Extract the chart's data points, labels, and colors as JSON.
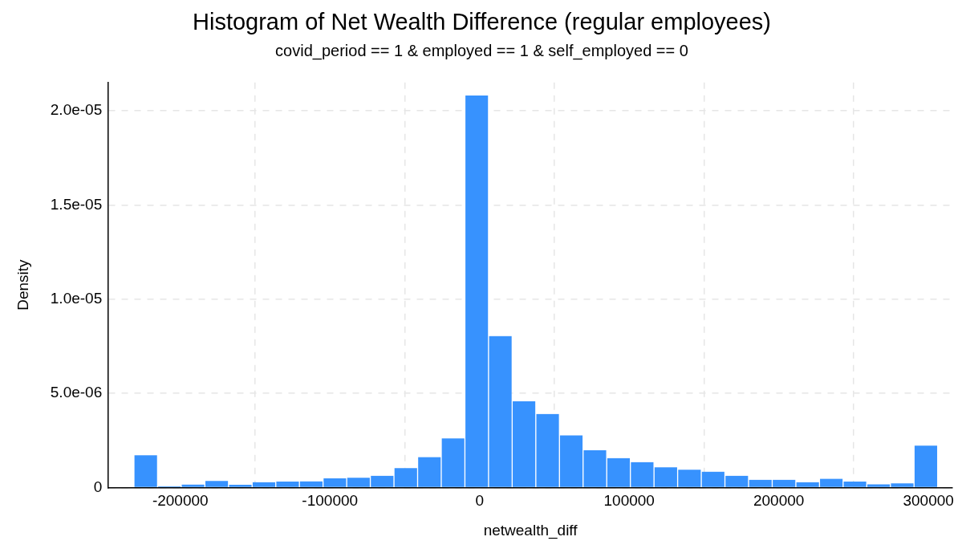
{
  "chart_data": {
    "type": "histogram",
    "title": "Histogram of Net Wealth Difference (regular employees)",
    "subtitle": "covid_period == 1 & employed == 1 & self_employed == 0",
    "xlabel": "netwealth_diff",
    "ylabel": "Density",
    "bins": [
      -231000,
      -215200,
      -199400,
      -183600,
      -167800,
      -152000,
      -136200,
      -120400,
      -104600,
      -88800,
      -73000,
      -57200,
      -41400,
      -25600,
      -9800,
      6000,
      21800,
      37600,
      53400,
      69200,
      85000,
      100800,
      116600,
      132400,
      148200,
      164000,
      179800,
      195600,
      211400,
      227200,
      243000,
      258800,
      274600,
      290400,
      306200
    ],
    "values": [
      1.71e-06,
      7e-08,
      1.6e-07,
      3.5e-07,
      1.4e-07,
      2.8e-07,
      3.2e-07,
      3.3e-07,
      4.9e-07,
      5.2e-07,
      6.2e-07,
      1.03e-06,
      1.61e-06,
      2.61e-06,
      2.081e-05,
      8.04e-06,
      4.58e-06,
      3.9e-06,
      2.77e-06,
      1.98e-06,
      1.56e-06,
      1.35e-06,
      1.07e-06,
      9.4e-07,
      8.4e-07,
      6.2e-07,
      4.1e-07,
      4.1e-07,
      2.8e-07,
      4.6e-07,
      3.2e-07,
      1.7e-07,
      2.2e-07,
      2.22e-06
    ],
    "color": "#3792fe",
    "xlim": [
      -248000,
      316000
    ],
    "xticks": [
      -200000,
      -100000,
      0,
      100000,
      200000,
      300000
    ],
    "ylim": [
      0,
      2.15e-05
    ],
    "yticks": [
      0,
      {
        "value": 5e-06,
        "label": "5.0e-06"
      },
      {
        "value": 1e-05,
        "label": "1.0e-05"
      },
      {
        "value": 1.5e-05,
        "label": "1.5e-05"
      },
      {
        "value": 2e-05,
        "label": "2.0e-05"
      }
    ],
    "grid": true,
    "legend": false
  }
}
